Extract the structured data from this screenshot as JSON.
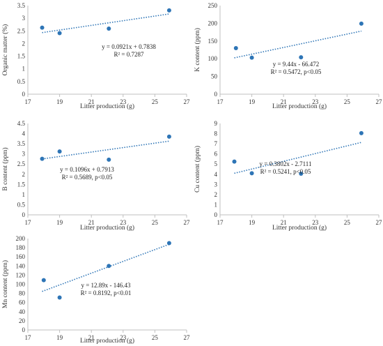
{
  "chart_data": [
    {
      "id": "organic",
      "type": "scatter",
      "x": [
        17.9,
        19.0,
        22.1,
        25.9
      ],
      "y": [
        2.63,
        2.41,
        2.59,
        3.31
      ],
      "xlabel": "Litter production (g)",
      "ylabel": "Organic matter (%)",
      "xlim": [
        17,
        27
      ],
      "ylim": [
        0,
        3.5
      ],
      "xticks": [
        "17",
        "19",
        "21",
        "23",
        "25",
        "27"
      ],
      "yticks": [
        "0",
        "0.5",
        "1",
        "1.5",
        "2",
        "2.5",
        "3",
        "3.5"
      ],
      "trendline": {
        "slope": 0.0921,
        "intercept": 0.7838,
        "x_range": [
          17.9,
          25.9
        ]
      },
      "equation": "y = 0.0921x + 0.7838",
      "r2": "R² = 0.7287"
    },
    {
      "id": "k",
      "type": "scatter",
      "x": [
        18.0,
        19.0,
        22.1,
        25.9
      ],
      "y": [
        130,
        103,
        104,
        199
      ],
      "xlabel": "Litter production (g)",
      "ylabel": "K content (ppm)",
      "xlim": [
        17,
        27
      ],
      "ylim": [
        0,
        250
      ],
      "xticks": [
        "17",
        "19",
        "21",
        "23",
        "25",
        "27"
      ],
      "yticks": [
        "0",
        "50",
        "100",
        "150",
        "200",
        "250"
      ],
      "trendline": {
        "slope": 9.44,
        "intercept": -66.472,
        "x_range": [
          17.9,
          25.9
        ]
      },
      "equation": "y = 9.44x - 66.472",
      "r2": "R² = 0.5472, p<0.05"
    },
    {
      "id": "b",
      "type": "scatter",
      "x": [
        17.9,
        19.0,
        22.1,
        25.9
      ],
      "y": [
        2.76,
        3.12,
        2.72,
        3.85
      ],
      "xlabel": "Litter production (g)",
      "ylabel": "B content (ppm)",
      "xlim": [
        17,
        27
      ],
      "ylim": [
        0,
        4.5
      ],
      "xticks": [
        "17",
        "19",
        "21",
        "23",
        "25",
        "27"
      ],
      "yticks": [
        "0",
        "0.5",
        "1",
        "1.5",
        "2",
        "2.5",
        "3",
        "3.5",
        "4",
        "4.5"
      ],
      "trendline": {
        "slope": 0.1096,
        "intercept": 0.7913,
        "x_range": [
          17.9,
          25.9
        ]
      },
      "equation": "y = 0.1096x + 0.7913",
      "r2": "R² = 0.5689, p<0.05"
    },
    {
      "id": "cu",
      "type": "scatter",
      "x": [
        17.9,
        19.0,
        22.1,
        25.9
      ],
      "y": [
        5.25,
        4.1,
        4.05,
        8.05
      ],
      "xlabel": "Litter production (g)",
      "ylabel": "Cu content (ppm)",
      "xlim": [
        17,
        27
      ],
      "ylim": [
        0,
        9
      ],
      "xticks": [
        "17",
        "19",
        "21",
        "23",
        "25",
        "27"
      ],
      "yticks": [
        "0",
        "1",
        "2",
        "3",
        "4",
        "5",
        "6",
        "7",
        "8",
        "9"
      ],
      "trendline": {
        "slope": 0.3802,
        "intercept": -2.7111,
        "x_range": [
          17.9,
          25.9
        ]
      },
      "equation": "y = 0.3802x - 2.7111",
      "r2": "R² = 0.5241, p<0.05"
    },
    {
      "id": "mn",
      "type": "scatter",
      "x": [
        18.0,
        19.0,
        22.1,
        25.9
      ],
      "y": [
        109,
        71,
        140,
        190
      ],
      "xlabel": "Litter production (g)",
      "ylabel": "Mn content (ppm)",
      "xlim": [
        17,
        27
      ],
      "ylim": [
        0,
        200
      ],
      "xticks": [
        "17",
        "19",
        "21",
        "23",
        "25",
        "27"
      ],
      "yticks": [
        "0",
        "20",
        "40",
        "60",
        "80",
        "100",
        "120",
        "140",
        "160",
        "180",
        "200"
      ],
      "trendline": {
        "slope": 12.89,
        "intercept": -146.43,
        "x_range": [
          17.9,
          25.9
        ]
      },
      "equation": "y = 12.89x - 146.43",
      "r2": "R² = 0.8192, p<0.01"
    }
  ]
}
